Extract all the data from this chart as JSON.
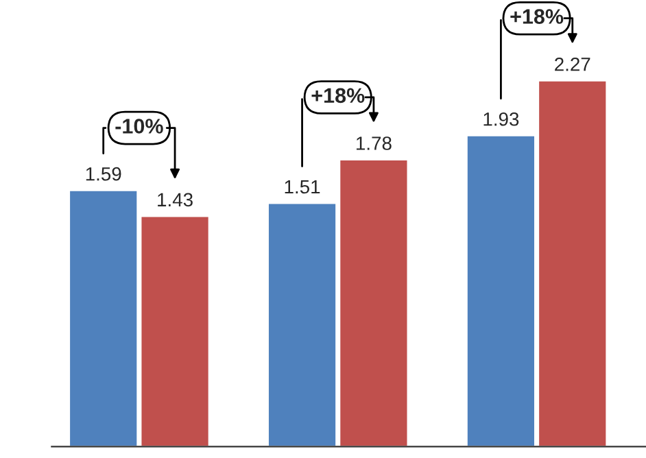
{
  "chart_data": {
    "type": "bar",
    "categories": [
      null,
      null,
      null
    ],
    "series": [
      {
        "color": "#4f81bd",
        "values": [
          1.59,
          1.51,
          1.93
        ]
      },
      {
        "color": "#c0504d",
        "values": [
          1.43,
          1.78,
          2.27
        ]
      }
    ],
    "data_labels": true,
    "grid": false,
    "annotations": [
      "-10%",
      "+18%",
      "+18%"
    ]
  }
}
